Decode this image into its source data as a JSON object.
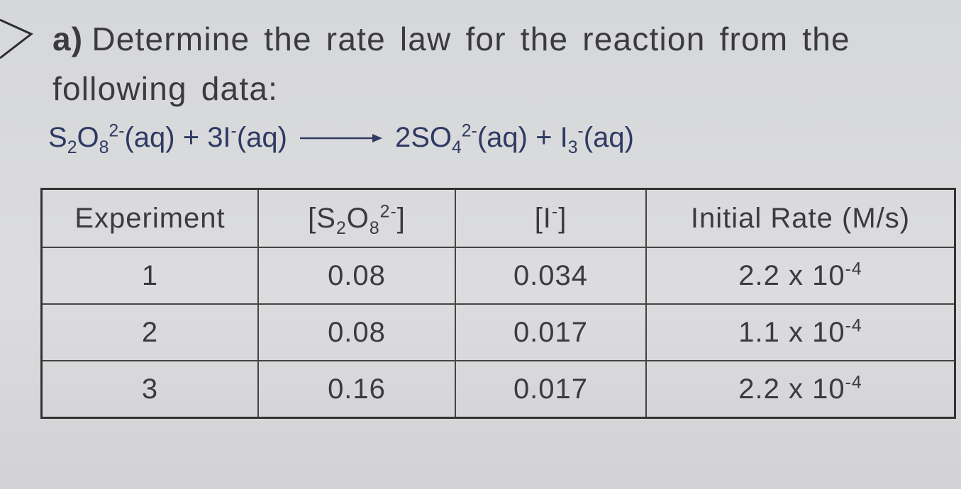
{
  "question": {
    "label": "a)",
    "text": "Determine the rate law for the reaction from the following data:"
  },
  "equation": {
    "reactants": [
      {
        "text": "S"
      },
      {
        "text": "2",
        "style": "sub"
      },
      {
        "text": "O"
      },
      {
        "text": "8",
        "style": "sub"
      },
      {
        "text": "2-",
        "style": "sup"
      },
      {
        "text": "(aq) + 3I"
      },
      {
        "text": "-",
        "style": "sup"
      },
      {
        "text": "(aq)"
      }
    ],
    "products": [
      {
        "text": "2SO"
      },
      {
        "text": "4",
        "style": "sub"
      },
      {
        "text": "2-",
        "style": "sup"
      },
      {
        "text": "(aq) + I"
      },
      {
        "text": "3",
        "style": "sub"
      },
      {
        "text": "-",
        "style": "sup"
      },
      {
        "text": "(aq)"
      }
    ]
  },
  "table": {
    "headers": [
      [
        {
          "text": "Experiment"
        }
      ],
      [
        {
          "text": "[S"
        },
        {
          "text": "2",
          "style": "sub"
        },
        {
          "text": "O"
        },
        {
          "text": "8",
          "style": "sub"
        },
        {
          "text": "2-",
          "style": "sup"
        },
        {
          "text": "]"
        }
      ],
      [
        {
          "text": "[I"
        },
        {
          "text": "-",
          "style": "sup"
        },
        {
          "text": "]"
        }
      ],
      [
        {
          "text": "Initial Rate (M/s)"
        }
      ]
    ],
    "rows": [
      [
        [
          {
            "text": "1"
          }
        ],
        [
          {
            "text": "0.08"
          }
        ],
        [
          {
            "text": "0.034"
          }
        ],
        [
          {
            "text": "2.2 x 10"
          },
          {
            "text": "-4",
            "style": "sup"
          }
        ]
      ],
      [
        [
          {
            "text": "2"
          }
        ],
        [
          {
            "text": "0.08"
          }
        ],
        [
          {
            "text": "0.017"
          }
        ],
        [
          {
            "text": "1.1 x 10"
          },
          {
            "text": "-4",
            "style": "sup"
          }
        ]
      ],
      [
        [
          {
            "text": "3"
          }
        ],
        [
          {
            "text": "0.16"
          }
        ],
        [
          {
            "text": "0.017"
          }
        ],
        [
          {
            "text": "2.2 x 10"
          },
          {
            "text": "-4",
            "style": "sup"
          }
        ]
      ]
    ]
  }
}
